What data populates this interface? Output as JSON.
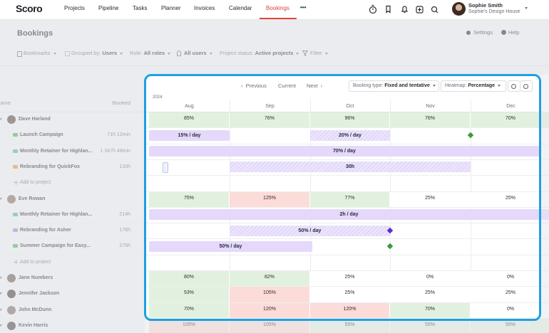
{
  "nav": {
    "logo": "Scoro",
    "items": [
      "Projects",
      "Pipeline",
      "Tasks",
      "Planner",
      "Invoices",
      "Calendar",
      "Bookings"
    ],
    "more": "•••",
    "user": {
      "name": "Sophie Smith",
      "company": "Sophie's Design House"
    }
  },
  "header": {
    "title": "Bookings",
    "settings": "Settings",
    "help": "Help"
  },
  "filters": [
    {
      "label": "Bookmarks"
    },
    {
      "label": "Grouped by:",
      "value": "Users"
    },
    {
      "label": "Role:",
      "value": "All roles"
    },
    {
      "label": "All users"
    },
    {
      "label": "Project status:",
      "value": "Active projects"
    },
    {
      "label": "Filter"
    }
  ],
  "toolbar": {
    "previous": "Previous",
    "current": "Current",
    "next": "Next",
    "booking_type": {
      "label": "Booking type:",
      "value": "Fixed and tentative"
    },
    "heatmap": {
      "label": "Heatmap:",
      "value": "Percentage"
    }
  },
  "timeline": {
    "year": "2024",
    "months": [
      "Aug",
      "Sep",
      "Oct",
      "Nov",
      "Dec"
    ]
  },
  "list_header": {
    "name": "Name",
    "booked": "Booked"
  },
  "rows": [
    {
      "name": "Dave Harland",
      "heat": [
        "85%",
        "76%",
        "96%",
        "76%",
        "70%"
      ]
    },
    {
      "name": "Launch Campaign",
      "booked": "71h 12min",
      "bars": [
        "15% / day",
        "20% / day"
      ]
    },
    {
      "name": "Monthly Retainer for Highlan...",
      "booked": "1 347h 48min",
      "bars": [
        "70% / day"
      ]
    },
    {
      "name": "Rebranding for QuickFox",
      "booked": "133h",
      "bars": [
        "30h"
      ]
    },
    {
      "name": "Add to project"
    },
    {
      "name": "Eve Rowan",
      "heat": [
        "75%",
        "125%",
        "77%",
        "25%",
        "25%"
      ]
    },
    {
      "name": "Monthly Retainer for Highlan...",
      "booked": "214h",
      "bars": [
        "2h / day"
      ]
    },
    {
      "name": "Rebranding for Asher",
      "booked": "176h",
      "bars": [
        "50% / day"
      ]
    },
    {
      "name": "Summer Campaign for Easy...",
      "booked": "276h",
      "bars": [
        "50% / day"
      ]
    },
    {
      "name": "Add to project"
    },
    {
      "name": "Jane Numbers",
      "heat": [
        "80%",
        "82%",
        "25%",
        "0%",
        "0%"
      ]
    },
    {
      "name": "Jennifer Jackson",
      "heat": [
        "53%",
        "105%",
        "25%",
        "25%",
        "25%"
      ]
    },
    {
      "name": "John McDunn",
      "heat": [
        "70%",
        "120%",
        "120%",
        "70%",
        "0%"
      ]
    },
    {
      "name": "Kevin Harris",
      "heat": [
        "105%",
        "105%",
        "55%",
        "55%",
        "55%"
      ]
    }
  ]
}
